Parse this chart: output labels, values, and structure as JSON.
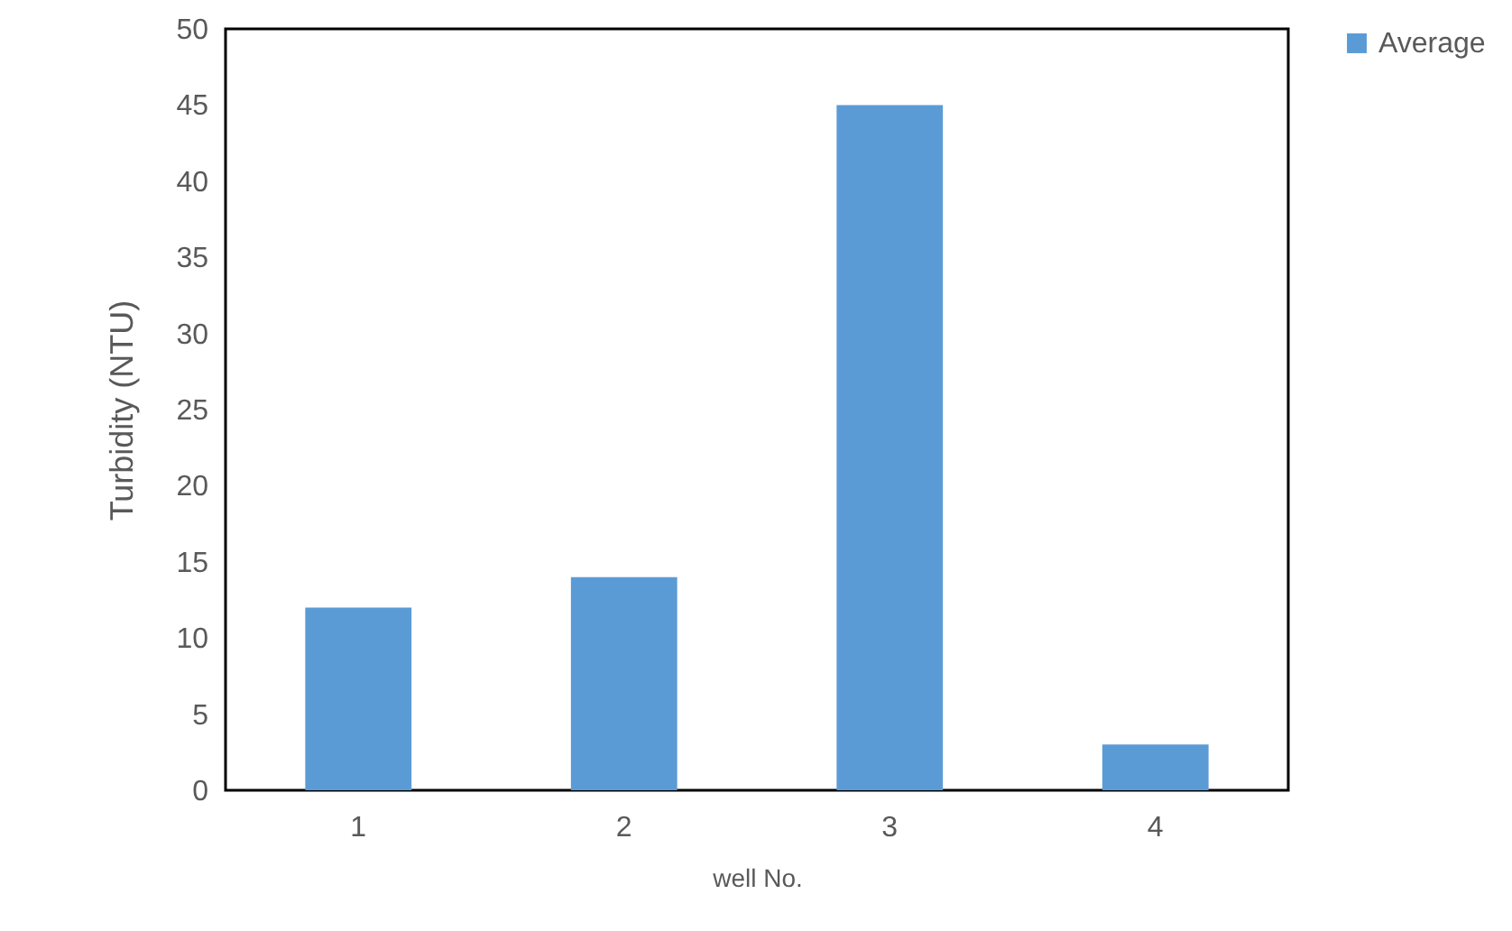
{
  "chart_data": {
    "type": "bar",
    "xlabel": "well No.",
    "ylabel": "Turbidity (NTU)",
    "categories": [
      "1",
      "2",
      "3",
      "4"
    ],
    "series": [
      {
        "name": "Average",
        "color": "#5b9bd5",
        "values": [
          12,
          14,
          45,
          3
        ]
      }
    ],
    "ylim": [
      0,
      50
    ],
    "yticks": [
      0,
      5,
      10,
      15,
      20,
      25,
      30,
      35,
      40,
      45,
      50
    ],
    "grid": false,
    "legend": "right"
  }
}
